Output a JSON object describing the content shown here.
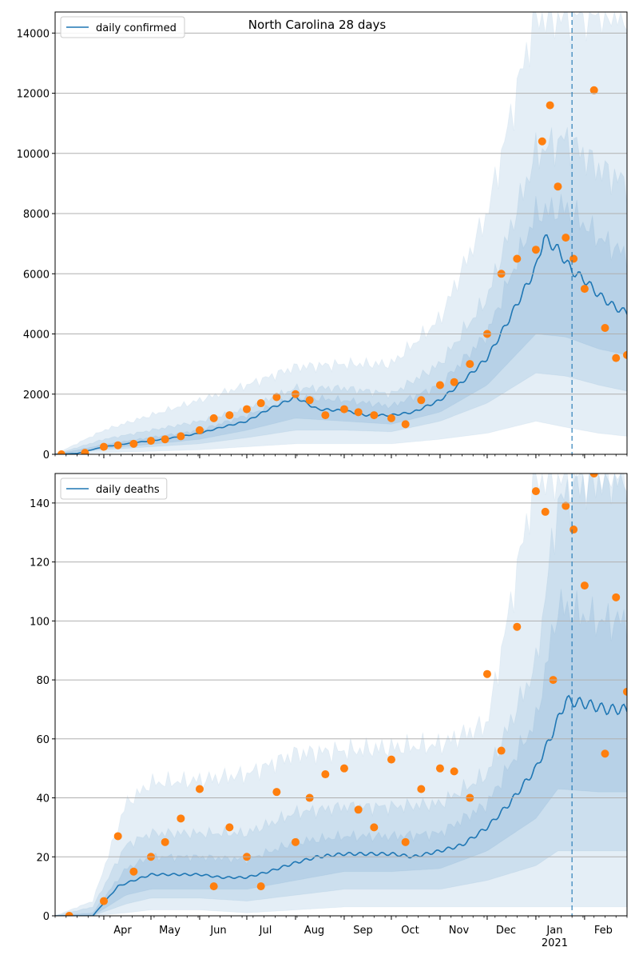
{
  "figure": {
    "title": "North Carolina 28 days",
    "x_tick_labels": [
      "Apr",
      "May",
      "Jun",
      "Jul",
      "Aug",
      "Sep",
      "Oct",
      "Nov",
      "Dec",
      "Jan",
      "Feb"
    ],
    "x_year_label": "2021"
  },
  "colors": {
    "line": "#1f77b4",
    "points": "#ff7f0e",
    "band": "#1f77b4",
    "grid": "#b0b0b0",
    "vline": "#1f77b4"
  },
  "chart_data": [
    {
      "type": "line",
      "title": "North Carolina 28 days",
      "legend": [
        "daily confirmed"
      ],
      "legend_position": "top-left",
      "grid": "horizontal",
      "x_range": [
        "2020-03-01",
        "2021-02-28"
      ],
      "ylim": [
        0,
        14700
      ],
      "y_ticks": [
        0,
        2000,
        4000,
        6000,
        8000,
        10000,
        12000,
        14000
      ],
      "vertical_marker": "2021-01-24",
      "series": [
        {
          "name": "daily confirmed",
          "style": "line",
          "x": [
            "2020-03-01",
            "2020-03-15",
            "2020-04-01",
            "2020-04-15",
            "2020-05-01",
            "2020-05-15",
            "2020-06-01",
            "2020-06-15",
            "2020-07-01",
            "2020-07-15",
            "2020-08-01",
            "2020-08-15",
            "2020-09-01",
            "2020-09-15",
            "2020-10-01",
            "2020-10-15",
            "2020-11-01",
            "2020-11-15",
            "2020-12-01",
            "2020-12-15",
            "2021-01-01",
            "2021-01-06",
            "2021-01-15",
            "2021-01-24",
            "2021-02-01",
            "2021-02-10",
            "2021-02-20",
            "2021-02-28"
          ],
          "values": [
            0,
            30,
            250,
            350,
            450,
            550,
            700,
            900,
            1100,
            1500,
            1900,
            1500,
            1450,
            1300,
            1300,
            1400,
            1800,
            2400,
            3200,
            4500,
            6200,
            7200,
            6800,
            6100,
            5800,
            5300,
            4900,
            4700
          ]
        },
        {
          "style": "scatter",
          "x": [
            "2020-03-05",
            "2020-03-20",
            "2020-04-01",
            "2020-04-10",
            "2020-04-20",
            "2020-05-01",
            "2020-05-10",
            "2020-05-20",
            "2020-06-01",
            "2020-06-10",
            "2020-06-20",
            "2020-07-01",
            "2020-07-10",
            "2020-07-20",
            "2020-08-01",
            "2020-08-10",
            "2020-08-20",
            "2020-09-01",
            "2020-09-10",
            "2020-09-20",
            "2020-10-01",
            "2020-10-10",
            "2020-10-20",
            "2020-11-01",
            "2020-11-10",
            "2020-11-20",
            "2020-12-01",
            "2020-12-10",
            "2020-12-20",
            "2021-01-01",
            "2021-01-05",
            "2021-01-10",
            "2021-01-15",
            "2021-01-20",
            "2021-01-25",
            "2021-02-01",
            "2021-02-07",
            "2021-02-14",
            "2021-02-21",
            "2021-02-28"
          ],
          "values": [
            0,
            50,
            250,
            300,
            350,
            450,
            500,
            600,
            800,
            1200,
            1300,
            1500,
            1700,
            1900,
            2000,
            1800,
            1300,
            1500,
            1400,
            1300,
            1200,
            1000,
            1800,
            2300,
            2400,
            3000,
            4000,
            6000,
            6500,
            6800,
            10400,
            11600,
            8900,
            7200,
            6500,
            5500,
            12100,
            4200,
            3200,
            3300
          ]
        }
      ],
      "bands": [
        {
          "x": [
            "2020-03-01",
            "2020-04-01",
            "2020-05-01",
            "2020-06-01",
            "2020-07-01",
            "2020-08-01",
            "2020-09-01",
            "2020-10-01",
            "2020-11-01",
            "2020-12-01",
            "2021-01-01",
            "2021-01-20",
            "2021-02-10",
            "2021-02-28"
          ],
          "lower": [
            0,
            50,
            100,
            150,
            250,
            350,
            350,
            350,
            500,
            700,
            1100,
            900,
            700,
            600
          ],
          "upper": [
            0,
            800,
            1300,
            1800,
            2300,
            2900,
            3000,
            3000,
            4500,
            8000,
            14700,
            14700,
            14700,
            14700
          ]
        },
        {
          "x": [
            "2020-03-01",
            "2020-04-01",
            "2020-05-01",
            "2020-06-01",
            "2020-07-01",
            "2020-08-01",
            "2020-09-01",
            "2020-10-01",
            "2020-11-01",
            "2020-12-01",
            "2021-01-01",
            "2021-01-20",
            "2021-02-10",
            "2021-02-28"
          ],
          "lower": [
            0,
            150,
            250,
            350,
            550,
            800,
            800,
            750,
            1100,
            1700,
            2700,
            2600,
            2300,
            2100
          ],
          "upper": [
            0,
            500,
            800,
            1100,
            1500,
            2200,
            2200,
            2000,
            3000,
            5200,
            10000,
            10500,
            9500,
            9000
          ]
        },
        {
          "x": [
            "2020-03-01",
            "2020-04-01",
            "2020-05-01",
            "2020-06-01",
            "2020-07-01",
            "2020-08-01",
            "2020-09-01",
            "2020-10-01",
            "2020-11-01",
            "2020-12-01",
            "2021-01-01",
            "2021-01-20",
            "2021-02-10",
            "2021-02-28"
          ],
          "lower": [
            0,
            200,
            330,
            500,
            800,
            1200,
            1100,
            1000,
            1400,
            2300,
            4000,
            3900,
            3500,
            3300
          ],
          "upper": [
            0,
            320,
            560,
            800,
            1300,
            1900,
            1800,
            1600,
            2300,
            4000,
            8000,
            8200,
            7200,
            6600
          ]
        }
      ]
    },
    {
      "type": "line",
      "legend": [
        "daily deaths"
      ],
      "legend_position": "top-left",
      "grid": "horizontal",
      "x_range": [
        "2020-03-01",
        "2021-02-28"
      ],
      "ylim": [
        0,
        150
      ],
      "y_ticks": [
        0,
        20,
        40,
        60,
        80,
        100,
        120,
        140
      ],
      "vertical_marker": "2021-01-24",
      "series": [
        {
          "name": "daily deaths",
          "style": "line",
          "x": [
            "2020-03-01",
            "2020-03-25",
            "2020-04-10",
            "2020-04-20",
            "2020-05-01",
            "2020-05-15",
            "2020-06-01",
            "2020-06-15",
            "2020-07-01",
            "2020-07-15",
            "2020-08-01",
            "2020-08-15",
            "2020-09-01",
            "2020-09-15",
            "2020-10-01",
            "2020-10-15",
            "2020-11-01",
            "2020-11-15",
            "2020-12-01",
            "2020-12-15",
            "2021-01-01",
            "2021-01-10",
            "2021-01-20",
            "2021-02-01",
            "2021-02-15",
            "2021-02-28"
          ],
          "values": [
            0,
            0,
            10,
            12,
            14,
            14,
            14,
            13,
            13,
            15,
            18,
            20,
            21,
            21,
            21,
            20,
            22,
            24,
            30,
            38,
            50,
            60,
            73,
            72,
            70,
            70
          ]
        },
        {
          "style": "scatter",
          "x": [
            "2020-03-10",
            "2020-04-01",
            "2020-04-10",
            "2020-04-20",
            "2020-05-01",
            "2020-05-10",
            "2020-05-20",
            "2020-06-01",
            "2020-06-10",
            "2020-06-20",
            "2020-07-01",
            "2020-07-10",
            "2020-07-20",
            "2020-08-01",
            "2020-08-10",
            "2020-08-20",
            "2020-09-01",
            "2020-09-10",
            "2020-09-20",
            "2020-10-01",
            "2020-10-10",
            "2020-10-20",
            "2020-11-01",
            "2020-11-10",
            "2020-11-20",
            "2020-12-01",
            "2020-12-10",
            "2020-12-20",
            "2021-01-01",
            "2021-01-07",
            "2021-01-12",
            "2021-01-20",
            "2021-01-25",
            "2021-02-01",
            "2021-02-07",
            "2021-02-14",
            "2021-02-21",
            "2021-02-28"
          ],
          "values": [
            0,
            5,
            27,
            15,
            20,
            25,
            33,
            43,
            10,
            30,
            20,
            10,
            42,
            25,
            40,
            48,
            50,
            36,
            30,
            53,
            25,
            43,
            50,
            49,
            40,
            82,
            56,
            98,
            144,
            137,
            80,
            139,
            131,
            112,
            150,
            55,
            108,
            76
          ]
        }
      ],
      "bands": [
        {
          "x": [
            "2020-03-01",
            "2020-03-25",
            "2020-04-15",
            "2020-05-01",
            "2020-06-01",
            "2020-07-01",
            "2020-08-01",
            "2020-09-01",
            "2020-10-01",
            "2020-11-01",
            "2020-12-01",
            "2021-01-01",
            "2021-01-15",
            "2021-02-10",
            "2021-02-28"
          ],
          "lower": [
            0,
            0,
            1,
            2,
            2,
            1,
            2,
            3,
            3,
            3,
            3,
            3,
            3,
            3,
            3
          ],
          "upper": [
            0,
            5,
            38,
            45,
            46,
            48,
            55,
            56,
            57,
            58,
            65,
            150,
            150,
            150,
            150
          ]
        },
        {
          "x": [
            "2020-03-01",
            "2020-03-25",
            "2020-04-15",
            "2020-05-01",
            "2020-06-01",
            "2020-07-01",
            "2020-08-01",
            "2020-09-01",
            "2020-10-01",
            "2020-11-01",
            "2020-12-01",
            "2021-01-01",
            "2021-01-15",
            "2021-02-10",
            "2021-02-28"
          ],
          "lower": [
            0,
            0,
            4,
            6,
            6,
            5,
            7,
            9,
            9,
            9,
            12,
            17,
            22,
            22,
            22
          ],
          "upper": [
            0,
            3,
            24,
            28,
            28,
            28,
            35,
            37,
            37,
            38,
            48,
            85,
            140,
            150,
            150
          ]
        },
        {
          "x": [
            "2020-03-01",
            "2020-03-25",
            "2020-04-15",
            "2020-05-01",
            "2020-06-01",
            "2020-07-01",
            "2020-08-01",
            "2020-09-01",
            "2020-10-01",
            "2020-11-01",
            "2020-12-01",
            "2021-01-01",
            "2021-01-15",
            "2021-02-10",
            "2021-02-28"
          ],
          "lower": [
            0,
            0,
            7,
            9,
            9,
            9,
            12,
            15,
            15,
            16,
            22,
            33,
            43,
            42,
            42
          ],
          "upper": [
            0,
            1,
            16,
            20,
            20,
            19,
            25,
            27,
            27,
            28,
            38,
            66,
            105,
            100,
            100
          ]
        }
      ]
    }
  ]
}
